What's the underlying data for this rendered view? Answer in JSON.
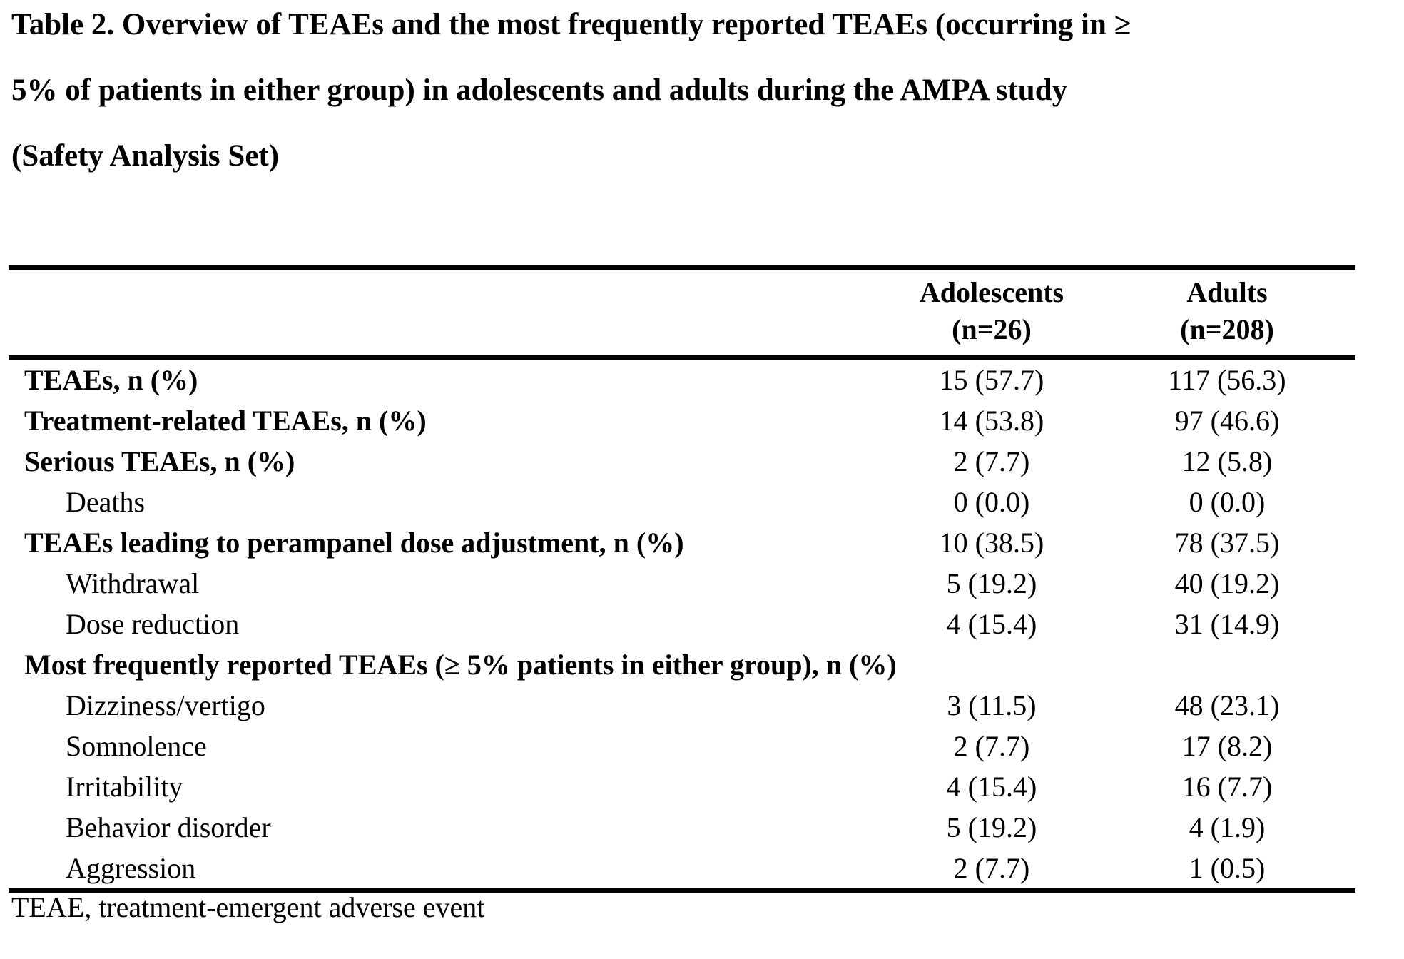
{
  "caption": {
    "line1": "Table 2. Overview of TEAEs and the most frequently reported TEAEs (occurring in ≥",
    "line2": "5% of patients in either group) in adolescents and adults during the AMPA study",
    "line3": "(Safety Analysis Set)"
  },
  "table": {
    "columns": [
      {
        "id": "adolescents",
        "line1": "Adolescents",
        "line2": "(n=26)"
      },
      {
        "id": "adults",
        "line1": "Adults",
        "line2": "(n=208)"
      }
    ],
    "rows": [
      {
        "label": "TEAEs, n (%)",
        "bold": true,
        "indent": false,
        "span": false,
        "adolescents": "15 (57.7)",
        "adults": "117 (56.3)"
      },
      {
        "label": "Treatment-related TEAEs, n (%)",
        "bold": true,
        "indent": false,
        "span": false,
        "adolescents": "14 (53.8)",
        "adults": "97 (46.6)"
      },
      {
        "label": "Serious TEAEs, n (%)",
        "bold": true,
        "indent": false,
        "span": false,
        "adolescents": "2 (7.7)",
        "adults": "12 (5.8)"
      },
      {
        "label": "Deaths",
        "bold": false,
        "indent": true,
        "span": false,
        "adolescents": "0 (0.0)",
        "adults": "0 (0.0)"
      },
      {
        "label": "TEAEs leading to perampanel dose adjustment, n (%)",
        "bold": true,
        "indent": false,
        "span": false,
        "adolescents": "10 (38.5)",
        "adults": "78 (37.5)"
      },
      {
        "label": "Withdrawal",
        "bold": false,
        "indent": true,
        "span": false,
        "adolescents": "5 (19.2)",
        "adults": "40 (19.2)"
      },
      {
        "label": "Dose reduction",
        "bold": false,
        "indent": true,
        "span": false,
        "adolescents": "4 (15.4)",
        "adults": "31 (14.9)"
      },
      {
        "label": "Most frequently reported TEAEs (≥ 5% patients in either group), n (%)",
        "bold": true,
        "indent": false,
        "span": true,
        "adolescents": "",
        "adults": ""
      },
      {
        "label": "Dizziness/vertigo",
        "bold": false,
        "indent": true,
        "span": false,
        "adolescents": "3 (11.5)",
        "adults": "48 (23.1)"
      },
      {
        "label": "Somnolence",
        "bold": false,
        "indent": true,
        "span": false,
        "adolescents": "2 (7.7)",
        "adults": "17 (8.2)"
      },
      {
        "label": "Irritability",
        "bold": false,
        "indent": true,
        "span": false,
        "adolescents": "4 (15.4)",
        "adults": "16 (7.7)"
      },
      {
        "label": "Behavior disorder",
        "bold": false,
        "indent": true,
        "span": false,
        "adolescents": "5 (19.2)",
        "adults": "4 (1.9)"
      },
      {
        "label": "Aggression",
        "bold": false,
        "indent": true,
        "span": false,
        "adolescents": "2 (7.7)",
        "adults": "1 (0.5)"
      }
    ]
  },
  "footnote": "TEAE, treatment-emergent adverse event",
  "colors": {
    "text": "#000000",
    "background": "#ffffff",
    "rule": "#000000"
  }
}
